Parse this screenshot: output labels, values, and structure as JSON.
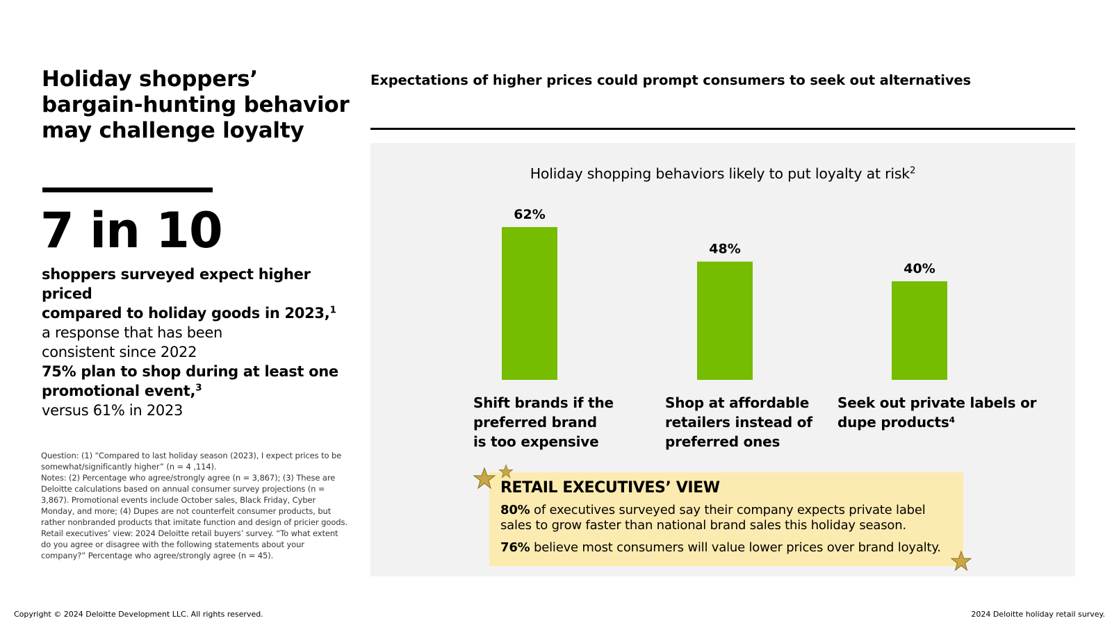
{
  "left": {
    "title_line1": "Holiday shoppers’",
    "title_line2": "bargain-hunting behavior",
    "title_line3": "may challenge loyalty",
    "big_stat": "7 in 10",
    "stat_bold_1": "shoppers surveyed expect higher priced",
    "stat_bold_2": "compared to holiday goods in 2023,",
    "stat_sup": "1",
    "stat_plain_1": "a response that has been",
    "stat_plain_2": "consistent since 2022",
    "promo_pct": "75%",
    "promo_text_1": " plan to shop during at least one",
    "promo_text_2": "promotional event,",
    "promo_sup": "3",
    "promo_text_3": "versus 61% in 2023",
    "footnote_question": "Question: (1) “Compared to last holiday season (2023), I expect prices to be somewhat/significantly higher” (n = 4 ,114).",
    "footnote_notes": "Notes: (2) Percentage who agree/strongly agree (n = 3,867); (3) These are Deloitte calculations based on annual consumer survey projections (n = 3,867). Promotional events include October sales, Black Friday, Cyber Monday, and more; (4) Dupes are not counterfeit consumer products, but rather nonbranded products that imitate function and design of pricier goods.",
    "footnote_retail": "Retail executives’ view: 2024 Deloitte retail buyers’ survey. “To what extent do you agree or disagree with the following statements about your company?” Percentage who agree/strongly agree (n = 45)."
  },
  "right": {
    "heading": "Expectations of higher prices could prompt consumers to seek out alternatives",
    "chart_subtitle": "Holiday shopping behaviors likely to put loyalty at risk",
    "chart_subtitle_sup": "2",
    "callout": {
      "title": "RETAIL EXECUTIVES’ VIEW",
      "p1_bold": "80%",
      "p1_text": " of executives surveyed say their company expects private label sales to grow faster than national brand sales this holiday season.",
      "p2_bold": "76%",
      "p2_text": " believe most consumers will value lower prices over brand loyalty."
    }
  },
  "chart_data": {
    "type": "bar",
    "title": "Holiday shopping behaviors likely to put loyalty at risk",
    "categories": [
      "Shift brands if the preferred brand is too expensive",
      "Shop at affordable retailers instead of preferred ones",
      "Seek out private labels or dupe products⁴"
    ],
    "category_lines": [
      [
        "Shift brands if the",
        "preferred brand",
        "is too expensive"
      ],
      [
        "Shop at affordable",
        "retailers instead of",
        "preferred ones"
      ],
      [
        "Seek out private labels or",
        "dupe products⁴"
      ]
    ],
    "values": [
      62,
      48,
      40
    ],
    "data_labels": [
      "62%",
      "48%",
      "40%"
    ],
    "xlabel": "",
    "ylabel": "",
    "ylim": [
      0,
      62
    ],
    "unit": "%",
    "grid": false,
    "legend": "none",
    "bar_color": "#76bc00"
  },
  "footer": {
    "copyright": "Copyright © 2024 Deloitte Development LLC. All rights reserved.",
    "source": "2024 Deloitte holiday retail survey."
  },
  "colors": {
    "accent_green": "#76bc00",
    "panel_gray": "#f2f2f2",
    "callout_yellow": "#fcebb0",
    "star_gold": "#c9a646"
  }
}
